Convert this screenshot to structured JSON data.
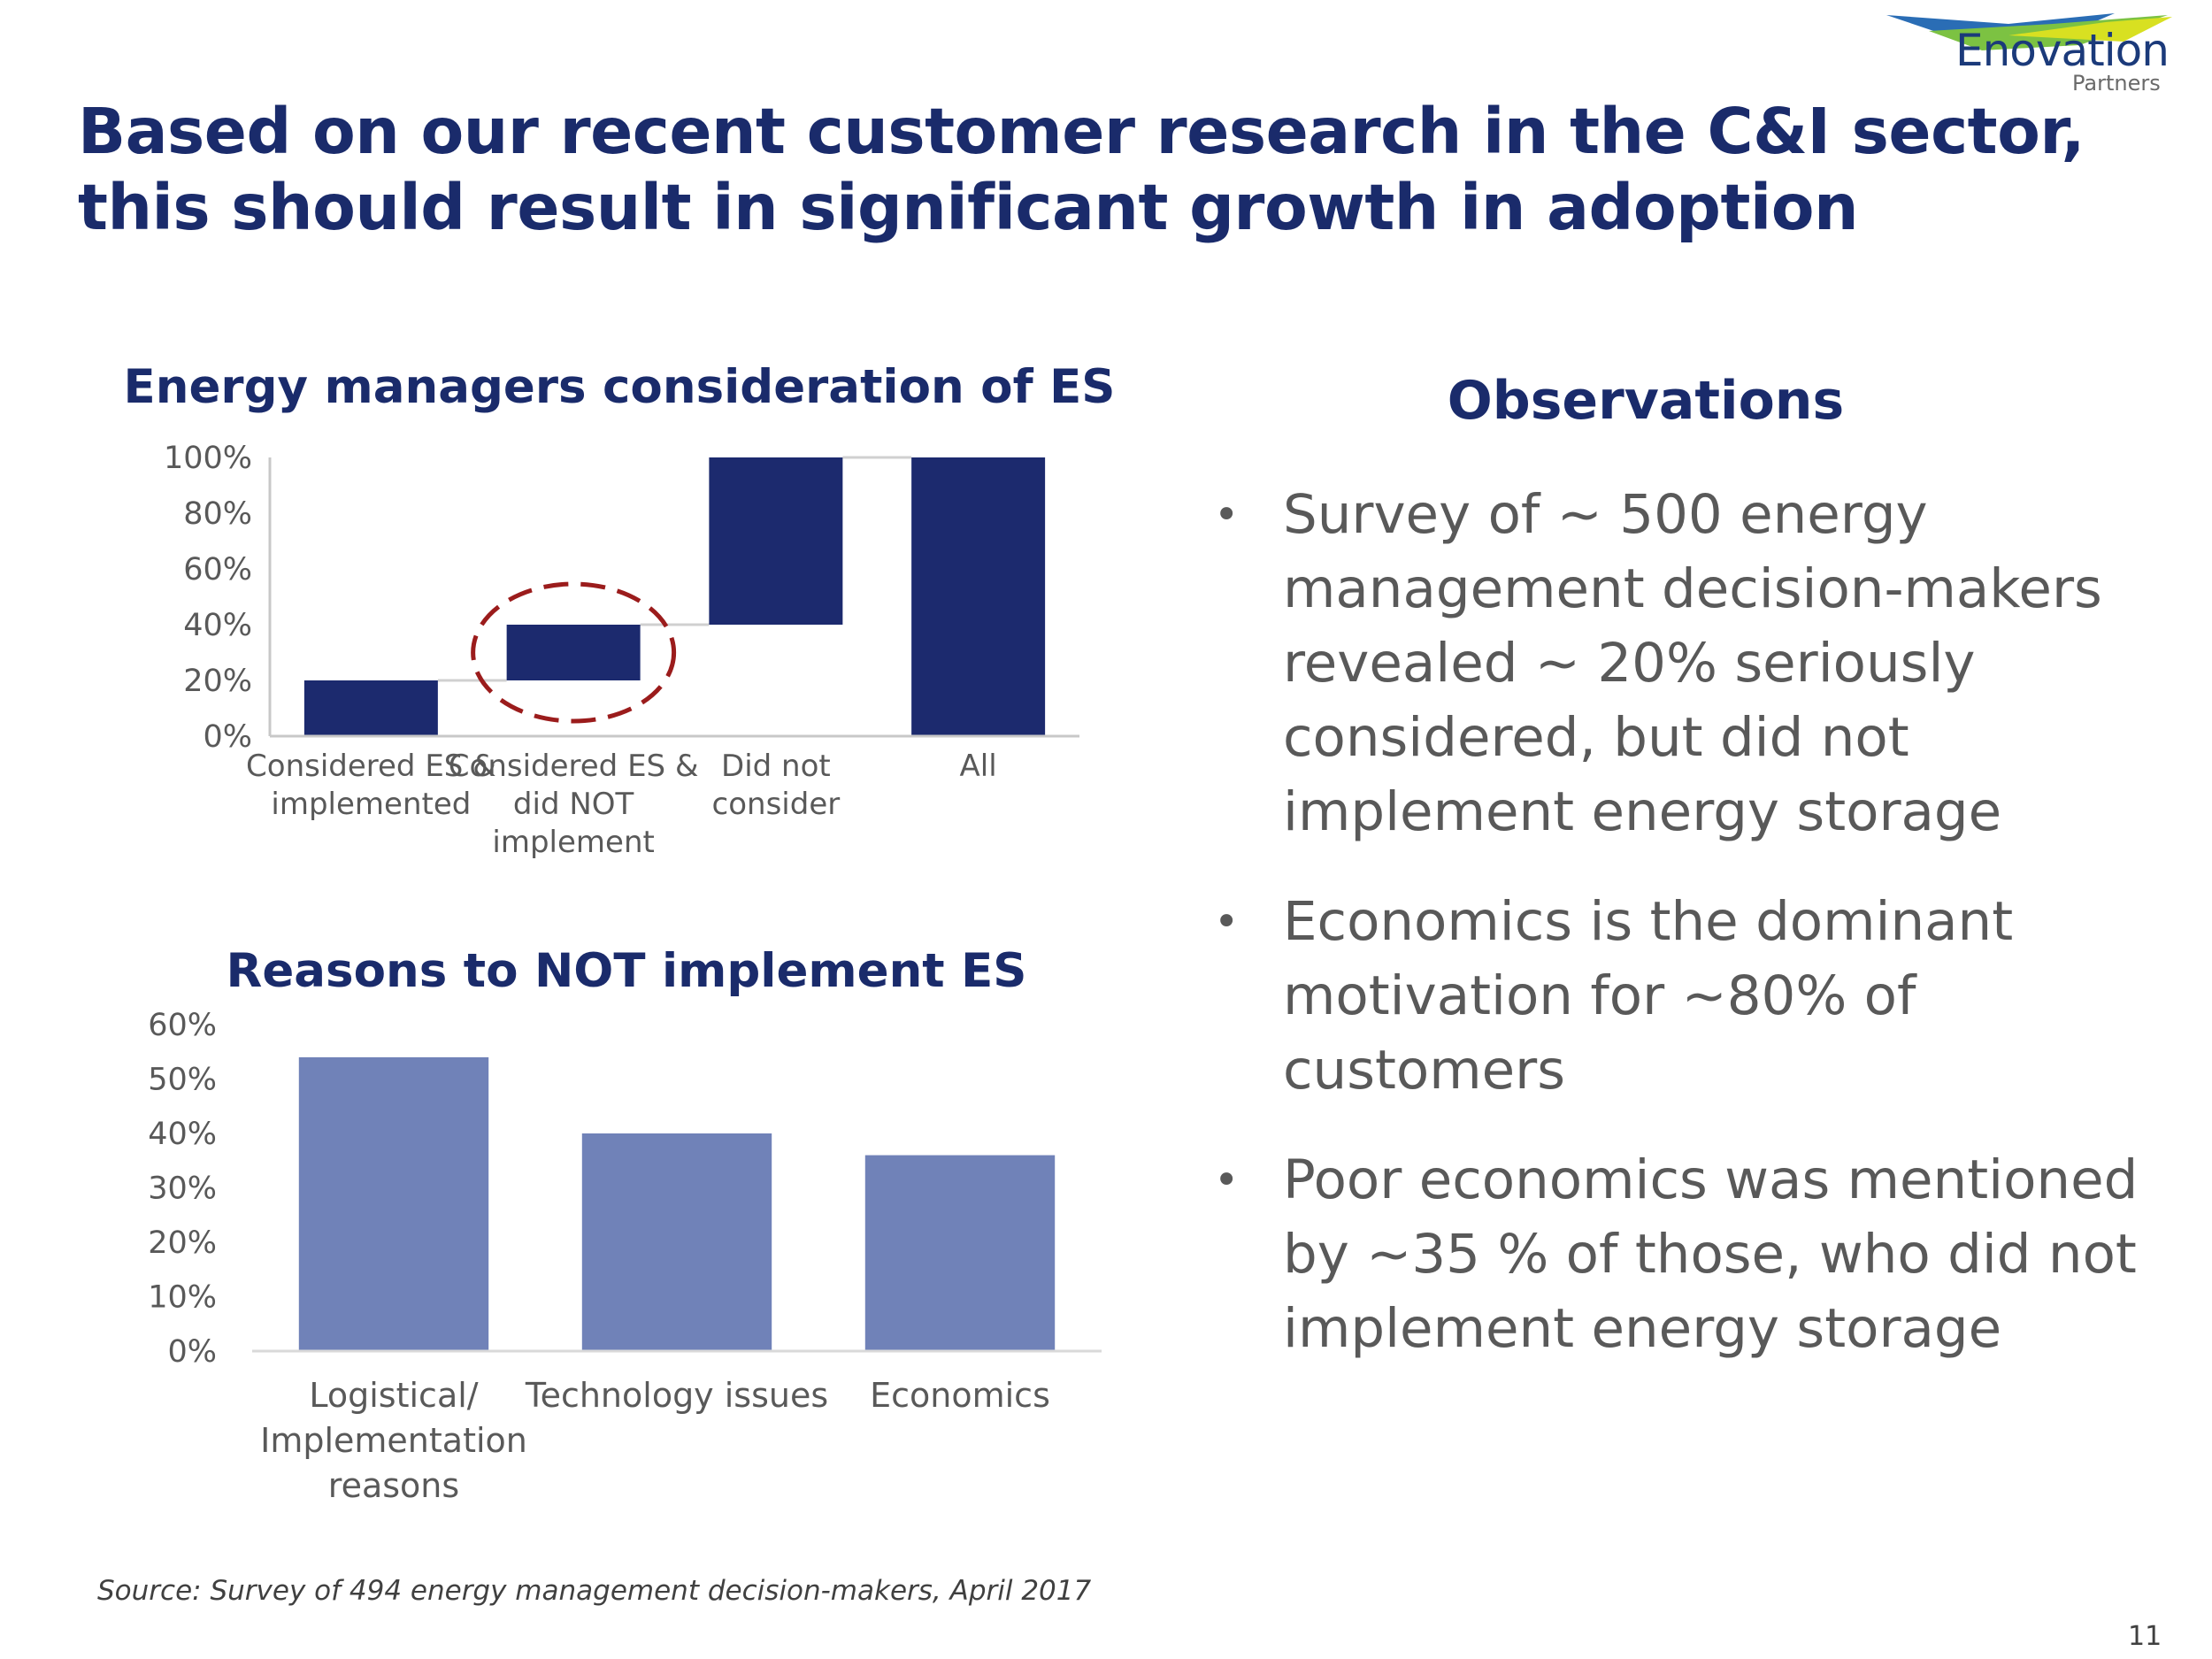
{
  "slide": {
    "title": "Based on our recent customer research in the C&I sector, this should result in significant growth in adoption",
    "logo": {
      "name": "Enovation",
      "sub": "Partners"
    },
    "source": "Source: Survey of 494 energy management decision-makers, April 2017",
    "page_number": "11"
  },
  "observations": {
    "title": "Observations",
    "bullets": [
      "Survey of ~ 500 energy management decision-makers revealed  ~ 20%  seriously considered, but did not implement energy storage",
      "Economics is the dominant motivation for ~80% of customers",
      "Poor economics was mentioned by ~35 % of those, who did not implement energy storage"
    ]
  },
  "colors": {
    "title": "#1a2b6b",
    "bar_dark": "#1c2a6e",
    "bar_light": "#7082b8",
    "highlight": "#9b1c1c"
  },
  "chart_data": [
    {
      "type": "bar",
      "variant": "waterfall",
      "title": "Energy managers consideration of ES",
      "categories": [
        [
          "Considered ES &",
          "implemented"
        ],
        [
          "Considered ES &",
          "did NOT",
          "implement"
        ],
        [
          "Did not",
          "consider"
        ],
        [
          "All"
        ]
      ],
      "ranges": [
        [
          0,
          20
        ],
        [
          20,
          40
        ],
        [
          40,
          100
        ],
        [
          0,
          100
        ]
      ],
      "ylim": [
        0,
        100
      ],
      "yticks": [
        0,
        20,
        40,
        60,
        80,
        100
      ],
      "tick_labels": [
        "0%",
        "20%",
        "40%",
        "60%",
        "80%",
        "100%"
      ],
      "highlight_index": 1,
      "grid": false
    },
    {
      "type": "bar",
      "title": "Reasons to NOT implement ES",
      "categories": [
        [
          "Logistical/",
          "Implementation",
          "reasons"
        ],
        [
          "Technology issues"
        ],
        [
          "Economics"
        ]
      ],
      "values": [
        54,
        40,
        36
      ],
      "ylim": [
        0,
        60
      ],
      "yticks": [
        0,
        10,
        20,
        30,
        40,
        50,
        60
      ],
      "tick_labels": [
        "0%",
        "10%",
        "20%",
        "30%",
        "40%",
        "50%",
        "60%"
      ],
      "grid": false
    }
  ]
}
